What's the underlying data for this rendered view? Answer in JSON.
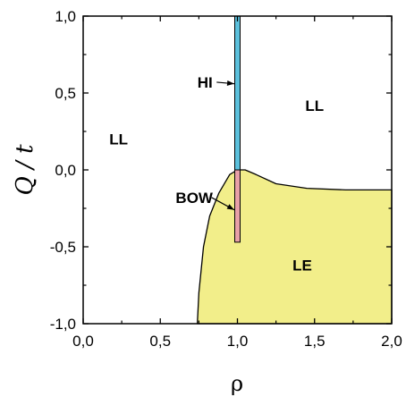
{
  "chart_data": {
    "type": "area",
    "title": "",
    "xlabel": "ρ",
    "ylabel": "Q / t",
    "xlim": [
      0.0,
      2.0
    ],
    "ylim": [
      -1.0,
      1.0
    ],
    "x_ticks": [
      0.0,
      0.5,
      1.0,
      1.5,
      2.0
    ],
    "x_tick_labels": [
      "0,0",
      "0,5",
      "1,0",
      "1,5",
      "2,0"
    ],
    "y_ticks": [
      -1.0,
      -0.5,
      0.0,
      0.5,
      1.0
    ],
    "y_tick_labels": [
      "-1,0",
      "-0,5",
      "0,0",
      "0,5",
      "1,0"
    ],
    "grid": false,
    "legend": "none",
    "regions": [
      {
        "name": "LE",
        "color": "#f2ee8a",
        "boundary": [
          [
            0.74,
            -1.0
          ],
          [
            0.75,
            -0.8
          ],
          [
            0.78,
            -0.5
          ],
          [
            0.82,
            -0.3
          ],
          [
            0.88,
            -0.15
          ],
          [
            0.95,
            -0.03
          ],
          [
            1.0,
            0.0
          ],
          [
            1.05,
            0.0
          ],
          [
            1.12,
            -0.03
          ],
          [
            1.25,
            -0.09
          ],
          [
            1.45,
            -0.12
          ],
          [
            1.7,
            -0.13
          ],
          [
            2.0,
            -0.13
          ],
          [
            2.0,
            -1.0
          ]
        ]
      }
    ],
    "bars": [
      {
        "name": "HI",
        "x": 1.0,
        "y_from": 0.0,
        "y_to": 1.0,
        "color": "#5bc0dc"
      },
      {
        "name": "BOW",
        "x": 1.0,
        "y_from": -0.47,
        "y_to": 0.0,
        "color": "#e8a0a8"
      }
    ],
    "annotations": [
      {
        "text": "LL",
        "x": 0.23,
        "y": 0.2
      },
      {
        "text": "LL",
        "x": 1.5,
        "y": 0.42
      },
      {
        "text": "LE",
        "x": 1.42,
        "y": -0.62
      },
      {
        "text": "HI",
        "x": 0.79,
        "y": 0.57,
        "arrow_to": [
          0.98,
          0.56
        ]
      },
      {
        "text": "BOW",
        "x": 0.72,
        "y": -0.18,
        "arrow_to": [
          0.98,
          -0.26
        ]
      }
    ]
  }
}
